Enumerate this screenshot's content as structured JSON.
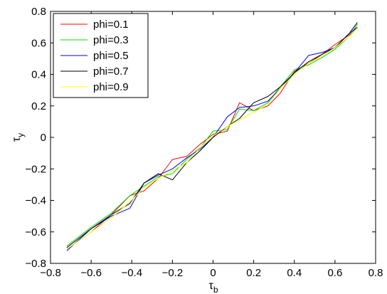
{
  "chart_data": {
    "type": "line",
    "xlabel": "τ_b",
    "ylabel": "τ_y",
    "xlim": [
      -0.8,
      0.8
    ],
    "ylim": [
      -0.8,
      0.8
    ],
    "xticks": [
      -0.8,
      -0.6,
      -0.4,
      -0.2,
      0,
      0.2,
      0.4,
      0.6,
      0.8
    ],
    "yticks": [
      -0.8,
      -0.6,
      -0.4,
      -0.2,
      0,
      0.2,
      0.4,
      0.6,
      0.8
    ],
    "xtick_labels": [
      "−0.8",
      "−0.6",
      "−0.4",
      "−0.2",
      "0",
      "0.2",
      "0.4",
      "0.6",
      "0.8"
    ],
    "ytick_labels": [
      "−0.8",
      "−0.6",
      "−0.4",
      "−0.2",
      "0",
      "0.2",
      "0.4",
      "0.6",
      "0.8"
    ],
    "legend_position": "top-left",
    "grid": false,
    "series": [
      {
        "name": "phi=0.1",
        "color": "#ff0000",
        "x": [
          -0.72,
          -0.6,
          -0.5,
          -0.41,
          -0.34,
          -0.27,
          -0.2,
          -0.13,
          -0.06,
          0,
          0.07,
          0.13,
          0.2,
          0.27,
          0.33,
          0.4,
          0.47,
          0.54,
          0.6,
          0.67,
          0.71
        ],
        "y": [
          -0.71,
          -0.6,
          -0.49,
          -0.37,
          -0.34,
          -0.26,
          -0.14,
          -0.12,
          -0.04,
          0.02,
          0.04,
          0.22,
          0.17,
          0.2,
          0.28,
          0.42,
          0.47,
          0.53,
          0.59,
          0.65,
          0.7
        ]
      },
      {
        "name": "phi=0.3",
        "color": "#00dd00",
        "x": [
          -0.72,
          -0.6,
          -0.5,
          -0.41,
          -0.34,
          -0.27,
          -0.2,
          -0.13,
          -0.06,
          0,
          0.07,
          0.13,
          0.2,
          0.27,
          0.33,
          0.4,
          0.47,
          0.54,
          0.6,
          0.67,
          0.71
        ],
        "y": [
          -0.69,
          -0.57,
          -0.48,
          -0.37,
          -0.31,
          -0.25,
          -0.23,
          -0.14,
          -0.06,
          0.04,
          0.05,
          0.18,
          0.17,
          0.22,
          0.32,
          0.43,
          0.46,
          0.51,
          0.56,
          0.64,
          0.72
        ]
      },
      {
        "name": "phi=0.5",
        "color": "#0000ff",
        "x": [
          -0.72,
          -0.6,
          -0.5,
          -0.41,
          -0.34,
          -0.27,
          -0.2,
          -0.13,
          -0.06,
          0,
          0.07,
          0.13,
          0.2,
          0.27,
          0.33,
          0.4,
          0.47,
          0.54,
          0.6,
          0.67,
          0.71
        ],
        "y": [
          -0.72,
          -0.58,
          -0.5,
          -0.45,
          -0.29,
          -0.24,
          -0.2,
          -0.13,
          -0.07,
          0,
          0.13,
          0.19,
          0.2,
          0.23,
          0.31,
          0.41,
          0.52,
          0.54,
          0.57,
          0.66,
          0.7
        ]
      },
      {
        "name": "phi=0.7",
        "color": "#000000",
        "x": [
          -0.72,
          -0.6,
          -0.5,
          -0.41,
          -0.34,
          -0.27,
          -0.2,
          -0.13,
          -0.06,
          0,
          0.07,
          0.13,
          0.2,
          0.27,
          0.33,
          0.4,
          0.47,
          0.54,
          0.6,
          0.67,
          0.71
        ],
        "y": [
          -0.7,
          -0.58,
          -0.49,
          -0.42,
          -0.29,
          -0.23,
          -0.27,
          -0.16,
          -0.08,
          0,
          0.07,
          0.12,
          0.22,
          0.26,
          0.32,
          0.41,
          0.48,
          0.53,
          0.57,
          0.66,
          0.73
        ]
      },
      {
        "name": "phi=0.9",
        "color": "#ffff00",
        "x": [
          -0.72,
          -0.6,
          -0.5,
          -0.41,
          -0.34,
          -0.27,
          -0.2,
          -0.13,
          -0.06,
          0,
          0.07,
          0.13,
          0.2,
          0.27,
          0.33,
          0.4,
          0.47,
          0.54,
          0.6,
          0.67,
          0.71
        ],
        "y": [
          -0.71,
          -0.6,
          -0.51,
          -0.41,
          -0.32,
          -0.26,
          -0.21,
          -0.16,
          -0.06,
          0.01,
          0.07,
          0.11,
          0.16,
          0.21,
          0.31,
          0.4,
          0.47,
          0.52,
          0.57,
          0.64,
          0.69
        ]
      }
    ]
  }
}
